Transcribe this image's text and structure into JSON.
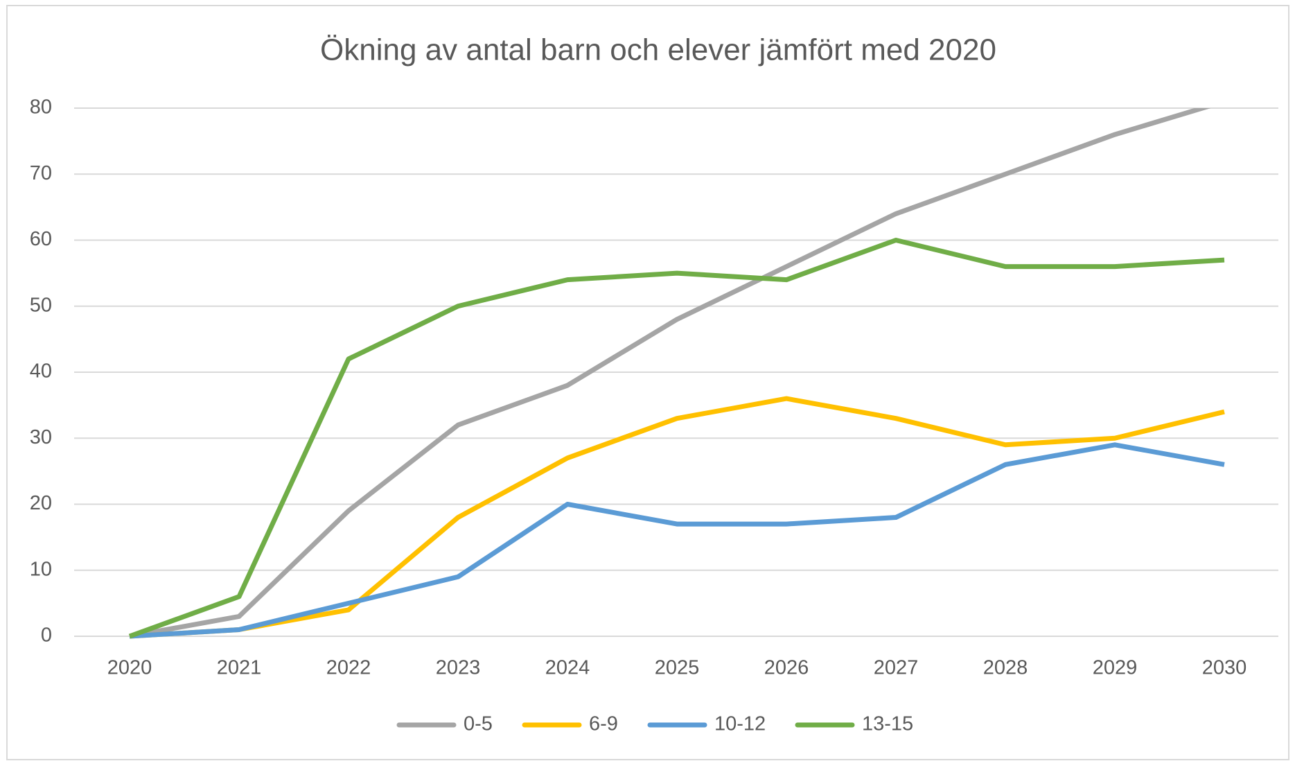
{
  "chart_data": {
    "type": "line",
    "title": "Ökning av antal barn och elever jämfört med 2020",
    "categories": [
      "2020",
      "2021",
      "2022",
      "2023",
      "2024",
      "2025",
      "2026",
      "2027",
      "2028",
      "2029",
      "2030"
    ],
    "series": [
      {
        "name": "0-5",
        "color": "#a5a5a5",
        "values": [
          0,
          3,
          19,
          32,
          38,
          48,
          56,
          64,
          70,
          76,
          81
        ]
      },
      {
        "name": "6-9",
        "color": "#ffc000",
        "values": [
          0,
          1,
          4,
          18,
          27,
          33,
          36,
          33,
          29,
          30,
          34
        ]
      },
      {
        "name": "10-12",
        "color": "#5b9bd5",
        "values": [
          0,
          1,
          5,
          9,
          20,
          17,
          17,
          18,
          26,
          29,
          26
        ]
      },
      {
        "name": "13-15",
        "color": "#70ad47",
        "values": [
          0,
          6,
          42,
          50,
          54,
          55,
          54,
          60,
          56,
          56,
          57
        ]
      }
    ],
    "ylim": [
      0,
      80
    ],
    "yticks": [
      0,
      10,
      20,
      30,
      40,
      50,
      60,
      70,
      80
    ],
    "grid": true,
    "legend": "bottom"
  }
}
